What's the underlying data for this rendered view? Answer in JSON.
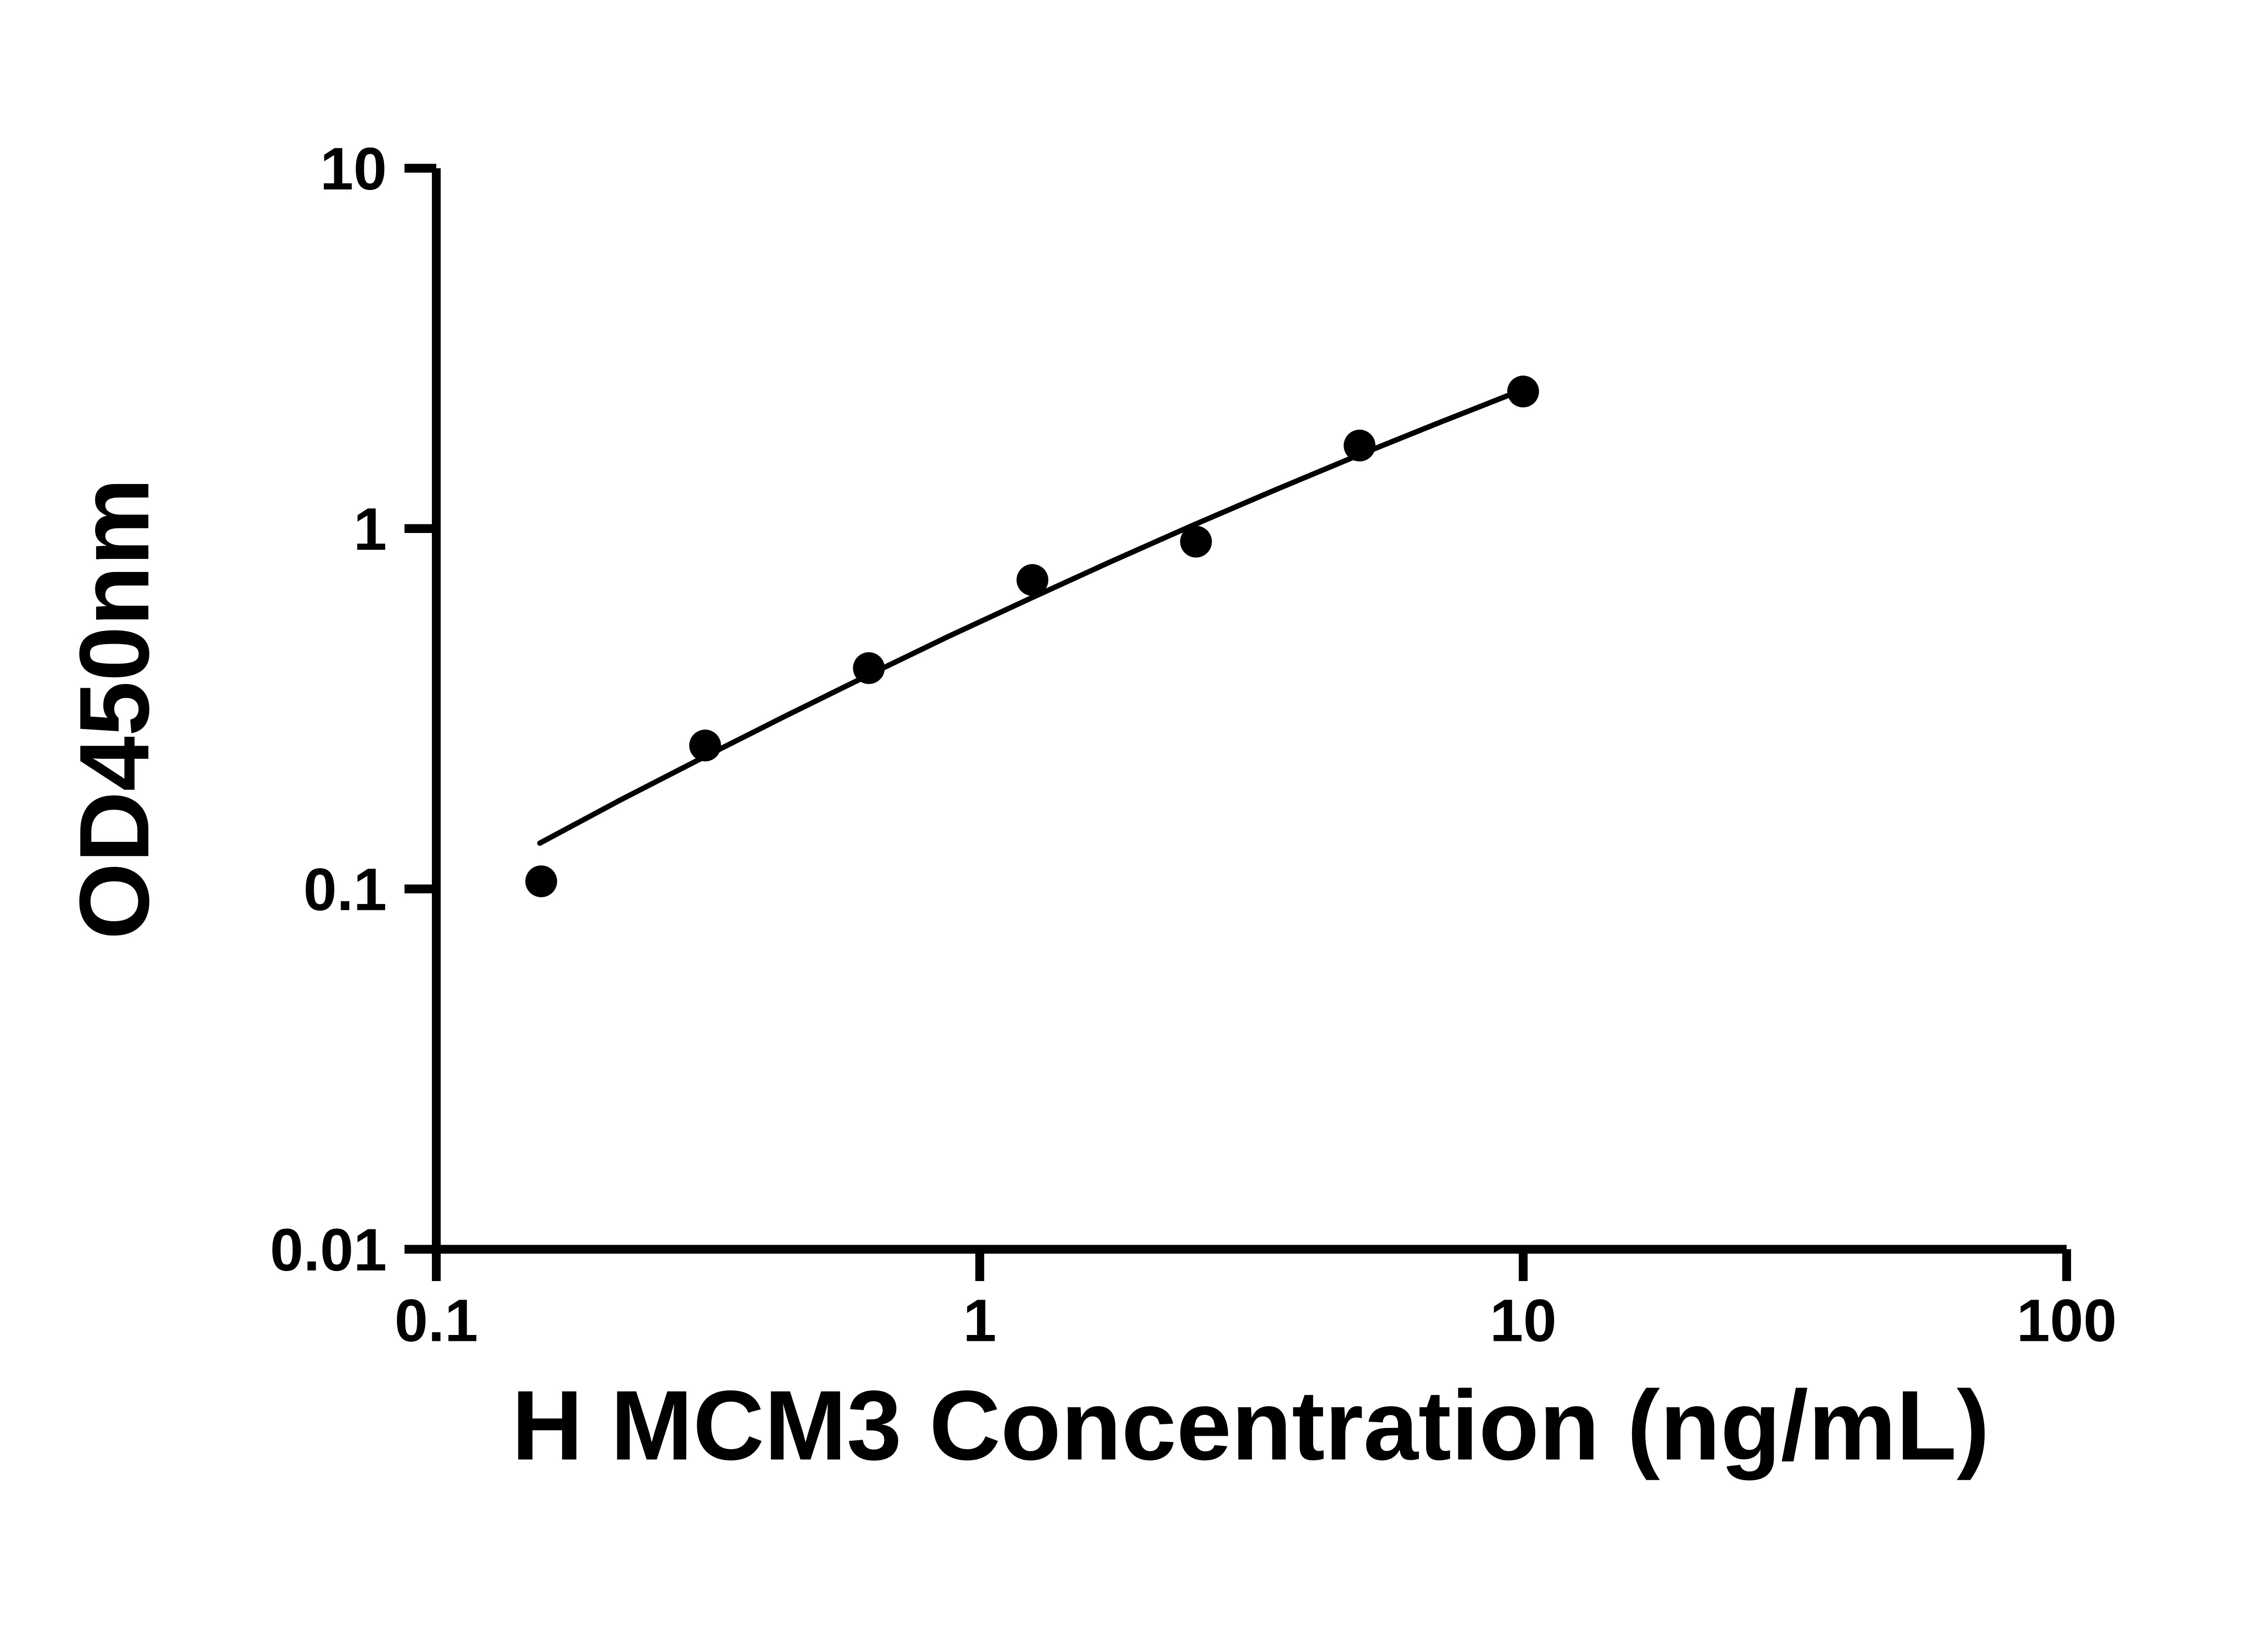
{
  "figure": {
    "background": "#ffffff",
    "accent_color": "#000000"
  },
  "chart_data": {
    "type": "scatter",
    "title": "",
    "xlabel": "H MCM3 Concentration (ng/mL)",
    "ylabel": "OD450nm",
    "xscale": "log",
    "yscale": "log",
    "xlim": [
      0.1,
      100
    ],
    "ylim": [
      0.01,
      10
    ],
    "x_ticks": [
      0.1,
      1,
      10,
      100
    ],
    "x_tick_labels": [
      "0.1",
      "1",
      "10",
      "100"
    ],
    "y_ticks": [
      0.01,
      0.1,
      1,
      10
    ],
    "y_tick_labels": [
      "0.01",
      "0.1",
      "1",
      "10"
    ],
    "grid": false,
    "legend": false,
    "marker_color": "#000000",
    "line_color": "#000000",
    "series": [
      {
        "name": "standard-curve-points",
        "type": "scatter",
        "marker": "circle",
        "color": "#000000",
        "x": [
          0.156,
          0.3125,
          0.625,
          1.25,
          2.5,
          5,
          10
        ],
        "y": [
          0.105,
          0.25,
          0.41,
          0.72,
          0.92,
          1.7,
          2.4
        ]
      },
      {
        "name": "fit-line",
        "type": "line",
        "color": "#000000",
        "x": [
          0.155,
          0.219,
          0.309,
          0.437,
          0.617,
          0.871,
          1.23,
          1.738,
          2.455,
          3.467,
          4.898,
          6.918,
          10
        ],
        "y": [
          0.134,
          0.177,
          0.231,
          0.301,
          0.389,
          0.5,
          0.637,
          0.808,
          1.018,
          1.273,
          1.583,
          1.954,
          2.431
        ]
      }
    ]
  }
}
